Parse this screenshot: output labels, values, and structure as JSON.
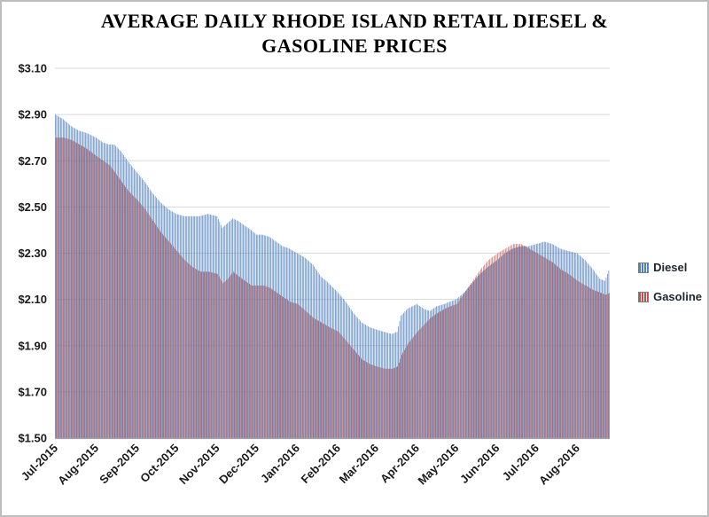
{
  "window": {
    "background": "#ffffff",
    "border_color": "#bdbdbd"
  },
  "title": {
    "line1": "AVERAGE DAILY RHODE ISLAND RETAIL DIESEL &",
    "line2": "GASOLINE PRICES"
  },
  "legend": {
    "items": [
      {
        "label": "Diesel",
        "color": "#4f81bd"
      },
      {
        "label": "Gasoline",
        "color": "#c0504d"
      }
    ]
  },
  "chart_data": {
    "type": "bar",
    "subtype": "daily-vertical-striped-area",
    "title": "AVERAGE DAILY RHODE ISLAND RETAIL DIESEL & GASOLINE PRICES",
    "ylabel": "",
    "xlabel": "",
    "ylim": [
      1.5,
      3.1
    ],
    "ytick_step": 0.2,
    "ytick_labels": [
      "$1.50",
      "$1.70",
      "$1.90",
      "$2.10",
      "$2.30",
      "$2.50",
      "$2.70",
      "$2.90",
      "$3.10"
    ],
    "categories": [
      "Jul-2015",
      "Aug-2015",
      "Sep-2015",
      "Oct-2015",
      "Nov-2015",
      "Dec-2015",
      "Jan-2016",
      "Feb-2016",
      "Mar-2016",
      "Apr-2016",
      "May-2016",
      "Jun-2016",
      "Jul-2016",
      "Aug-2016"
    ],
    "month_day_offsets": [
      0,
      31,
      62,
      92,
      123,
      153,
      184,
      215,
      244,
      275,
      305,
      336,
      366,
      397
    ],
    "total_days": 422,
    "grid": true,
    "grid_color": "#d9d9d9",
    "axis_color": "#a6a6a6",
    "legend_position": "right",
    "series": [
      {
        "name": "Diesel",
        "color": "#4f81bd",
        "points": [
          [
            0,
            2.9
          ],
          [
            6,
            2.88
          ],
          [
            12,
            2.85
          ],
          [
            18,
            2.83
          ],
          [
            24,
            2.82
          ],
          [
            31,
            2.8
          ],
          [
            36,
            2.78
          ],
          [
            41,
            2.77
          ],
          [
            45,
            2.77
          ],
          [
            50,
            2.74
          ],
          [
            55,
            2.7
          ],
          [
            62,
            2.65
          ],
          [
            68,
            2.61
          ],
          [
            74,
            2.56
          ],
          [
            80,
            2.52
          ],
          [
            86,
            2.49
          ],
          [
            92,
            2.47
          ],
          [
            98,
            2.46
          ],
          [
            104,
            2.46
          ],
          [
            110,
            2.46
          ],
          [
            116,
            2.47
          ],
          [
            123,
            2.46
          ],
          [
            127,
            2.41
          ],
          [
            131,
            2.43
          ],
          [
            135,
            2.45
          ],
          [
            139,
            2.44
          ],
          [
            144,
            2.42
          ],
          [
            149,
            2.4
          ],
          [
            153,
            2.38
          ],
          [
            158,
            2.38
          ],
          [
            163,
            2.37
          ],
          [
            168,
            2.35
          ],
          [
            173,
            2.33
          ],
          [
            178,
            2.32
          ],
          [
            184,
            2.3
          ],
          [
            190,
            2.28
          ],
          [
            196,
            2.25
          ],
          [
            202,
            2.2
          ],
          [
            208,
            2.17
          ],
          [
            215,
            2.13
          ],
          [
            221,
            2.09
          ],
          [
            227,
            2.04
          ],
          [
            233,
            2.0
          ],
          [
            239,
            1.98
          ],
          [
            244,
            1.97
          ],
          [
            250,
            1.96
          ],
          [
            256,
            1.95
          ],
          [
            260,
            1.96
          ],
          [
            263,
            2.03
          ],
          [
            268,
            2.06
          ],
          [
            275,
            2.08
          ],
          [
            280,
            2.06
          ],
          [
            285,
            2.05
          ],
          [
            290,
            2.07
          ],
          [
            296,
            2.08
          ],
          [
            300,
            2.09
          ],
          [
            305,
            2.1
          ],
          [
            311,
            2.13
          ],
          [
            317,
            2.17
          ],
          [
            323,
            2.21
          ],
          [
            329,
            2.24
          ],
          [
            336,
            2.27
          ],
          [
            342,
            2.3
          ],
          [
            348,
            2.32
          ],
          [
            354,
            2.33
          ],
          [
            360,
            2.33
          ],
          [
            366,
            2.34
          ],
          [
            372,
            2.35
          ],
          [
            378,
            2.34
          ],
          [
            384,
            2.32
          ],
          [
            390,
            2.31
          ],
          [
            397,
            2.3
          ],
          [
            403,
            2.27
          ],
          [
            409,
            2.23
          ],
          [
            414,
            2.19
          ],
          [
            418,
            2.18
          ],
          [
            422,
            2.24
          ]
        ]
      },
      {
        "name": "Gasoline",
        "color": "#c0504d",
        "points": [
          [
            0,
            2.8
          ],
          [
            6,
            2.8
          ],
          [
            12,
            2.79
          ],
          [
            18,
            2.77
          ],
          [
            24,
            2.75
          ],
          [
            31,
            2.72
          ],
          [
            36,
            2.7
          ],
          [
            41,
            2.68
          ],
          [
            45,
            2.65
          ],
          [
            50,
            2.61
          ],
          [
            55,
            2.57
          ],
          [
            62,
            2.53
          ],
          [
            68,
            2.49
          ],
          [
            74,
            2.44
          ],
          [
            80,
            2.39
          ],
          [
            86,
            2.35
          ],
          [
            92,
            2.31
          ],
          [
            98,
            2.27
          ],
          [
            104,
            2.24
          ],
          [
            110,
            2.22
          ],
          [
            116,
            2.22
          ],
          [
            123,
            2.21
          ],
          [
            127,
            2.17
          ],
          [
            131,
            2.19
          ],
          [
            135,
            2.22
          ],
          [
            139,
            2.2
          ],
          [
            144,
            2.18
          ],
          [
            149,
            2.16
          ],
          [
            153,
            2.16
          ],
          [
            158,
            2.16
          ],
          [
            163,
            2.15
          ],
          [
            168,
            2.13
          ],
          [
            173,
            2.11
          ],
          [
            178,
            2.09
          ],
          [
            184,
            2.08
          ],
          [
            190,
            2.05
          ],
          [
            196,
            2.02
          ],
          [
            202,
            2.0
          ],
          [
            208,
            1.98
          ],
          [
            215,
            1.96
          ],
          [
            221,
            1.92
          ],
          [
            227,
            1.88
          ],
          [
            233,
            1.84
          ],
          [
            239,
            1.82
          ],
          [
            244,
            1.81
          ],
          [
            250,
            1.8
          ],
          [
            256,
            1.8
          ],
          [
            260,
            1.81
          ],
          [
            263,
            1.86
          ],
          [
            268,
            1.91
          ],
          [
            275,
            1.96
          ],
          [
            280,
            1.99
          ],
          [
            285,
            2.02
          ],
          [
            290,
            2.04
          ],
          [
            296,
            2.06
          ],
          [
            300,
            2.07
          ],
          [
            305,
            2.08
          ],
          [
            311,
            2.13
          ],
          [
            317,
            2.18
          ],
          [
            323,
            2.23
          ],
          [
            329,
            2.27
          ],
          [
            336,
            2.3
          ],
          [
            342,
            2.32
          ],
          [
            348,
            2.34
          ],
          [
            354,
            2.34
          ],
          [
            360,
            2.32
          ],
          [
            366,
            2.3
          ],
          [
            372,
            2.28
          ],
          [
            378,
            2.26
          ],
          [
            384,
            2.23
          ],
          [
            390,
            2.21
          ],
          [
            397,
            2.18
          ],
          [
            403,
            2.16
          ],
          [
            409,
            2.14
          ],
          [
            414,
            2.13
          ],
          [
            418,
            2.12
          ],
          [
            422,
            2.13
          ]
        ]
      }
    ]
  }
}
